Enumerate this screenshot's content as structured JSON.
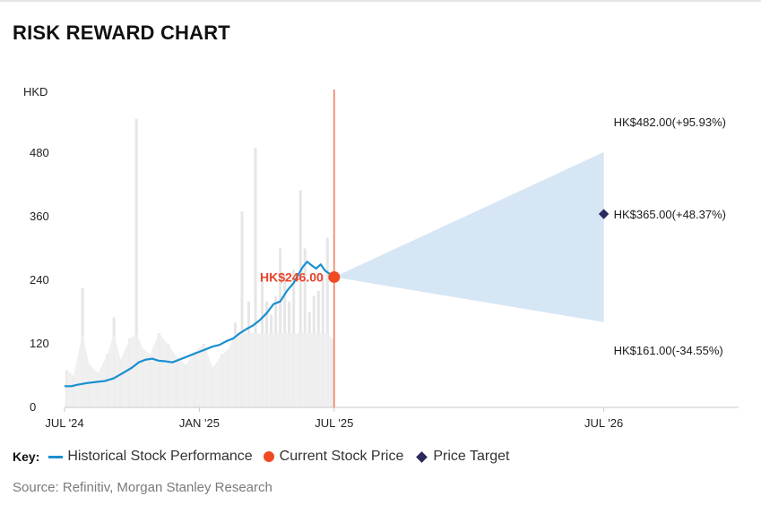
{
  "title": "RISK REWARD CHART",
  "key": {
    "label": "Key:",
    "items": [
      {
        "label": "Historical Stock Performance",
        "icon": "line-icon",
        "color": "#1a8fd0"
      },
      {
        "label": "Current Stock Price",
        "icon": "dot-icon",
        "color": "#f04a23"
      },
      {
        "label": "Price Target",
        "icon": "diamond-icon",
        "color": "#2a2a5e"
      }
    ]
  },
  "source": "Source: Refinitiv, Morgan Stanley Research",
  "chart_data": {
    "type": "line",
    "ylabel": "HKD",
    "ylim": [
      0,
      600
    ],
    "yticks": [
      0,
      120,
      240,
      360,
      480
    ],
    "xticks": [
      "JUL '24",
      "JAN '25",
      "JUL '25",
      "JUL '26"
    ],
    "xtick_values": [
      0,
      6,
      12,
      24
    ],
    "xlim": [
      0,
      30
    ],
    "current": {
      "x": 12,
      "y": 246,
      "label": "HK$246.00",
      "color": "#f04a23"
    },
    "scenarios": [
      {
        "name": "bull",
        "x": 24,
        "y": 482,
        "label": "HK$482.00(+95.93%)"
      },
      {
        "name": "target",
        "x": 24,
        "y": 365,
        "label": "HK$365.00(+48.37%)"
      },
      {
        "name": "bear",
        "x": 24,
        "y": 161,
        "label": "HK$161.00(-34.55%)"
      }
    ],
    "history": {
      "color": "#1a8fd0",
      "x": [
        0,
        0.3,
        0.6,
        1.0,
        1.4,
        1.8,
        2.2,
        2.6,
        3.0,
        3.3,
        3.6,
        3.9,
        4.2,
        4.5,
        4.8,
        5.1,
        5.4,
        5.7,
        6.0,
        6.3,
        6.6,
        6.9,
        7.2,
        7.5,
        7.8,
        8.1,
        8.4,
        8.7,
        9.0,
        9.3,
        9.6,
        9.9,
        10.2,
        10.4,
        10.6,
        10.8,
        11.0,
        11.2,
        11.4,
        11.6,
        11.8,
        12.0
      ],
      "y": [
        40,
        40,
        43,
        46,
        48,
        50,
        55,
        65,
        75,
        85,
        90,
        92,
        88,
        87,
        85,
        90,
        95,
        100,
        105,
        110,
        115,
        118,
        125,
        130,
        140,
        148,
        155,
        165,
        178,
        195,
        200,
        220,
        235,
        250,
        265,
        275,
        268,
        262,
        270,
        258,
        252,
        246
      ]
    },
    "volume": {
      "color": "#e6e6e6",
      "x": [
        0.1,
        0.4,
        0.8,
        1.1,
        1.5,
        1.9,
        2.2,
        2.5,
        2.9,
        3.2,
        3.5,
        3.8,
        4.2,
        4.6,
        5.0,
        5.4,
        5.8,
        6.2,
        6.6,
        7.0,
        7.3,
        7.6,
        7.9,
        8.2,
        8.5,
        8.8,
        9.0,
        9.2,
        9.4,
        9.6,
        9.8,
        10.0,
        10.2,
        10.5,
        10.7,
        10.9,
        11.1,
        11.3,
        11.5,
        11.7,
        11.9
      ],
      "y": [
        70,
        60,
        225,
        80,
        65,
        100,
        170,
        90,
        130,
        545,
        110,
        100,
        140,
        120,
        95,
        80,
        105,
        120,
        75,
        100,
        110,
        160,
        370,
        200,
        490,
        240,
        200,
        175,
        210,
        300,
        250,
        200,
        260,
        410,
        300,
        180,
        210,
        220,
        250,
        320,
        130
      ]
    }
  }
}
